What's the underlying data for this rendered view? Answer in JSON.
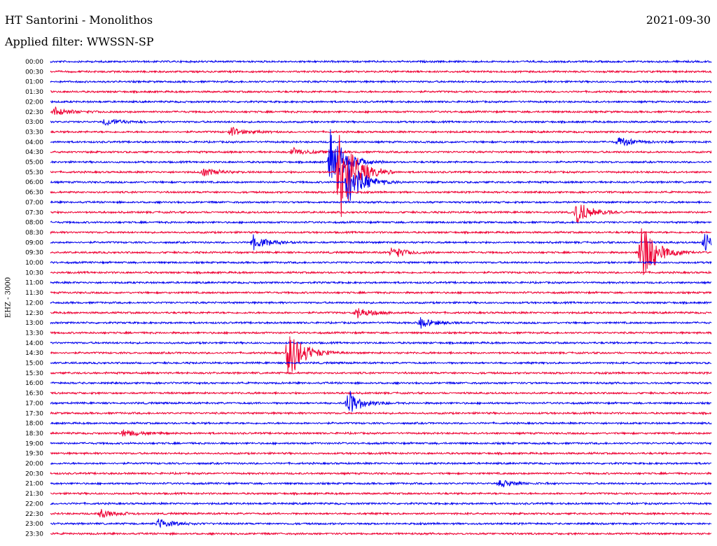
{
  "header": {
    "title": "HT Santorini - Monolithos",
    "date": "2021-09-30",
    "filter": "Applied filter: WWSSN-SP"
  },
  "chart_data": {
    "type": "line",
    "ylabel": "EHZ - 3000",
    "row_labels": [
      "00:00",
      "00:30",
      "01:00",
      "01:30",
      "02:00",
      "02:30",
      "03:00",
      "03:30",
      "04:00",
      "04:30",
      "05:00",
      "05:30",
      "06:00",
      "06:30",
      "07:00",
      "07:30",
      "08:00",
      "08:30",
      "09:00",
      "09:30",
      "10:00",
      "10:30",
      "11:00",
      "11:30",
      "12:00",
      "12:30",
      "13:00",
      "13:30",
      "14:00",
      "14:30",
      "15:00",
      "15:30",
      "16:00",
      "16:30",
      "17:00",
      "17:30",
      "18:00",
      "18:30",
      "19:00",
      "19:30",
      "20:00",
      "20:30",
      "21:00",
      "21:30",
      "22:00",
      "22:30",
      "23:00",
      "23:30"
    ],
    "series_colors": [
      "#0000ee",
      "#ee0033"
    ],
    "row_duration_minutes": 30,
    "events": [
      {
        "row": 5,
        "minute": 0.2,
        "amp": 0.9
      },
      {
        "row": 6,
        "minute": 2.5,
        "amp": 0.8
      },
      {
        "row": 7,
        "minute": 8.2,
        "amp": 0.9
      },
      {
        "row": 8,
        "minute": 25.8,
        "amp": 1.0
      },
      {
        "row": 9,
        "minute": 11.0,
        "amp": 0.8
      },
      {
        "row": 10,
        "minute": 12.7,
        "amp": 6.0
      },
      {
        "row": 11,
        "minute": 6.9,
        "amp": 1.0
      },
      {
        "row": 11,
        "minute": 13.1,
        "amp": 12.0
      },
      {
        "row": 12,
        "minute": 13.5,
        "amp": 5.0
      },
      {
        "row": 15,
        "minute": 23.9,
        "amp": 2.5
      },
      {
        "row": 18,
        "minute": 9.2,
        "amp": 1.4
      },
      {
        "row": 18,
        "minute": 29.7,
        "amp": 2.0
      },
      {
        "row": 19,
        "minute": 15.5,
        "amp": 1.2
      },
      {
        "row": 19,
        "minute": 26.8,
        "amp": 7.0
      },
      {
        "row": 25,
        "minute": 13.9,
        "amp": 1.2
      },
      {
        "row": 26,
        "minute": 16.8,
        "amp": 1.0
      },
      {
        "row": 29,
        "minute": 10.8,
        "amp": 6.0
      },
      {
        "row": 34,
        "minute": 13.5,
        "amp": 2.5
      },
      {
        "row": 37,
        "minute": 3.3,
        "amp": 0.8
      },
      {
        "row": 42,
        "minute": 20.4,
        "amp": 0.8
      },
      {
        "row": 45,
        "minute": 2.3,
        "amp": 0.9
      },
      {
        "row": 46,
        "minute": 4.9,
        "amp": 1.0
      }
    ]
  }
}
